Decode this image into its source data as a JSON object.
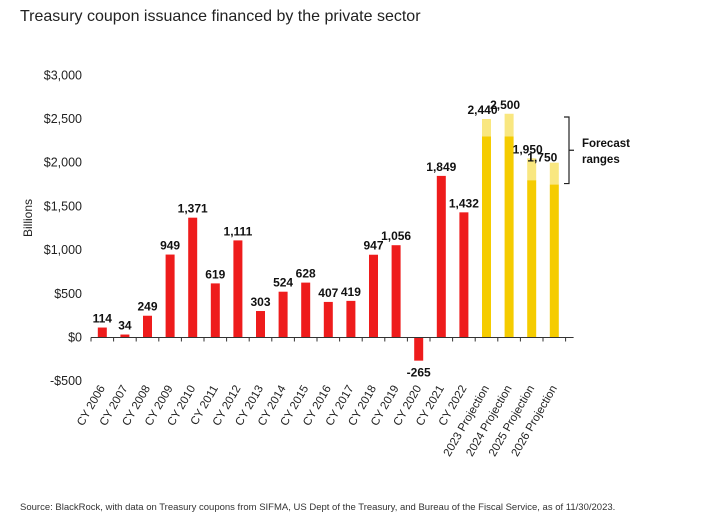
{
  "title": "Treasury coupon issuance financed by the private sector",
  "source": "Source: BlackRock, with data on Treasury coupons from SIFMA, US Dept of the Treasury, and Bureau of the Fiscal Service, as of 11/30/2023.",
  "chart_data": {
    "type": "bar",
    "ylabel": "Billions",
    "ylim": [
      -500,
      3000
    ],
    "yticks": [
      -500,
      0,
      500,
      1000,
      1500,
      2000,
      2500,
      3000
    ],
    "ytick_labels": [
      "-$500",
      "$0",
      "$500",
      "$1,000",
      "$1,500",
      "$2,000",
      "$2,500",
      "$3,000"
    ],
    "categories": [
      "CY 2006",
      "CY 2007",
      "CY 2008",
      "CY 2009",
      "CY 2010",
      "CY 2011",
      "CY 2012",
      "CY 2013",
      "CY 2014",
      "CY 2015",
      "CY 2016",
      "CY 2017",
      "CY 2018",
      "CY 2019",
      "CY 2020",
      "CY 2021",
      "CY 2022",
      "2023 Projection",
      "2024 Projection",
      "2025 Projection",
      "2026 Projection"
    ],
    "values": [
      114,
      34,
      249,
      949,
      1371,
      619,
      1111,
      303,
      524,
      628,
      407,
      419,
      947,
      1056,
      -265,
      1849,
      1432,
      2440,
      2500,
      1950,
      1750
    ],
    "value_labels": [
      "114",
      "34",
      "249",
      "949",
      "1,371",
      "619",
      "1,111",
      "303",
      "524",
      "628",
      "407",
      "419",
      "947",
      "1,056",
      "-265",
      "1,849",
      "1,432",
      "2,440",
      "2,500",
      "1,950",
      "1,750"
    ],
    "forecast_range_low": [
      null,
      null,
      null,
      null,
      null,
      null,
      null,
      null,
      null,
      null,
      null,
      null,
      null,
      null,
      null,
      null,
      null,
      2300,
      2300,
      1800,
      1750
    ],
    "forecast_range_high": [
      null,
      null,
      null,
      null,
      null,
      null,
      null,
      null,
      null,
      null,
      null,
      null,
      null,
      null,
      null,
      null,
      null,
      2500,
      2560,
      2050,
      2000
    ],
    "annotation": "Forecast ranges",
    "colors": {
      "historical": "#ee1c1c",
      "projection": "#f5cc00",
      "range": "#f8e36a"
    }
  }
}
